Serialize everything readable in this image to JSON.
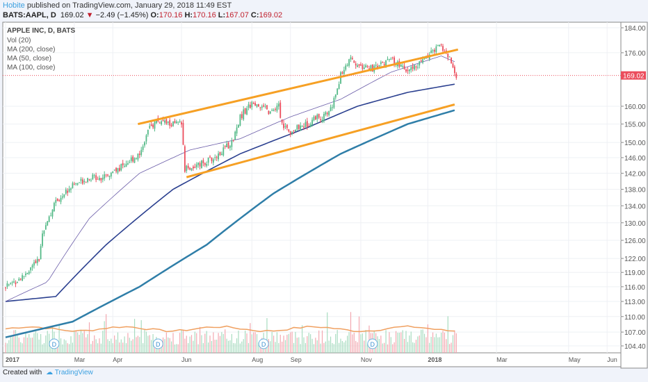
{
  "header": {
    "author": "Hobite",
    "published": " published on TradingView.com, January 29, 2018 11:49 EST",
    "symbol": "BATS:AAPL, D",
    "last": "169.02",
    "change": "−2.49 (−1.45%)",
    "open_label": "O:",
    "open": "170.16",
    "high_label": "H:",
    "high": "170.16",
    "low_label": "L:",
    "low": "167.07",
    "close_label": "C:",
    "close": "169.02"
  },
  "legend": [
    "APPLE INC, D, BATS",
    "Vol (20)",
    "MA (200, close)",
    "MA (50, close)",
    "MA (100, close)"
  ],
  "footer": {
    "created": "Created with",
    "brand": "TradingView"
  },
  "colors": {
    "up": "#53b987",
    "down": "#eb4d5c",
    "ma200": "#2f7ea8",
    "ma100": "#2a3f8f",
    "ma50": "#6a5ca8",
    "trend": "#f6a024",
    "volma": "#f0a060"
  },
  "chart_data": {
    "type": "candlestick",
    "title": "APPLE INC, D, BATS",
    "price_ticks": [
      184,
      176,
      160,
      155,
      150,
      146,
      142,
      138,
      134,
      130,
      126,
      122,
      119,
      116,
      113,
      110,
      107,
      104.4
    ],
    "price_tick_labels": [
      "184.00",
      "176.00",
      "160.00",
      "155.00",
      "150.00",
      "146.00",
      "142.00",
      "138.00",
      "134.00",
      "130.00",
      "126.00",
      "122.00",
      "119.00",
      "116.00",
      "113.00",
      "110.00",
      "107.00",
      "104.40"
    ],
    "last_price_label": "169.02",
    "time_labels": [
      {
        "t": "2017",
        "d": 0
      },
      {
        "t": "Mar",
        "d": 41
      },
      {
        "t": "Apr",
        "d": 64
      },
      {
        "t": "Jun",
        "d": 105
      },
      {
        "t": "Aug",
        "d": 147
      },
      {
        "t": "Sep",
        "d": 170
      },
      {
        "t": "Nov",
        "d": 212
      },
      {
        "t": "2018",
        "d": 252
      },
      {
        "t": "Mar",
        "d": 293
      },
      {
        "t": "May",
        "d": 336
      },
      {
        "t": "Jun",
        "d": 359
      }
    ],
    "close_path": [
      [
        0,
        116
      ],
      [
        10,
        118
      ],
      [
        15,
        120
      ],
      [
        20,
        121.5
      ],
      [
        22,
        128
      ],
      [
        30,
        135
      ],
      [
        40,
        139
      ],
      [
        50,
        141
      ],
      [
        60,
        141
      ],
      [
        70,
        144
      ],
      [
        80,
        147
      ],
      [
        85,
        153
      ],
      [
        90,
        156
      ],
      [
        98,
        155
      ],
      [
        105,
        155
      ],
      [
        107,
        143
      ],
      [
        115,
        144
      ],
      [
        125,
        146
      ],
      [
        135,
        150
      ],
      [
        140,
        157
      ],
      [
        145,
        160
      ],
      [
        150,
        161
      ],
      [
        158,
        158
      ],
      [
        163,
        160
      ],
      [
        165,
        155
      ],
      [
        170,
        153
      ],
      [
        180,
        155
      ],
      [
        185,
        157
      ],
      [
        190,
        157
      ],
      [
        195,
        160
      ],
      [
        200,
        169
      ],
      [
        205,
        174
      ],
      [
        210,
        172
      ],
      [
        220,
        171
      ],
      [
        230,
        174
      ],
      [
        240,
        170
      ],
      [
        250,
        174
      ],
      [
        256,
        177
      ],
      [
        260,
        178
      ],
      [
        265,
        174
      ],
      [
        269,
        169
      ]
    ],
    "ma200": [
      [
        0,
        106
      ],
      [
        40,
        109
      ],
      [
        80,
        116
      ],
      [
        120,
        125
      ],
      [
        160,
        137
      ],
      [
        200,
        147
      ],
      [
        240,
        155
      ],
      [
        269,
        159
      ]
    ],
    "ma100": [
      [
        0,
        113
      ],
      [
        30,
        114
      ],
      [
        60,
        125
      ],
      [
        100,
        138
      ],
      [
        140,
        147
      ],
      [
        180,
        154
      ],
      [
        210,
        160
      ],
      [
        240,
        164
      ],
      [
        269,
        166.5
      ]
    ],
    "ma50": [
      [
        0,
        113
      ],
      [
        25,
        117
      ],
      [
        50,
        131
      ],
      [
        80,
        142
      ],
      [
        110,
        148
      ],
      [
        140,
        151
      ],
      [
        170,
        157
      ],
      [
        200,
        162
      ],
      [
        230,
        170
      ],
      [
        260,
        175
      ],
      [
        269,
        173
      ]
    ],
    "trendlines": [
      {
        "from": [
          79,
          155
        ],
        "to": [
          270,
          177
        ]
      },
      {
        "from": [
          108,
          141
        ],
        "to": [
          268,
          160.5
        ]
      }
    ],
    "dividends": [
      {
        "d": 29,
        "label": "D"
      },
      {
        "d": 91,
        "label": "D"
      },
      {
        "d": 154,
        "label": "D"
      },
      {
        "d": 219,
        "label": "D"
      }
    ]
  }
}
